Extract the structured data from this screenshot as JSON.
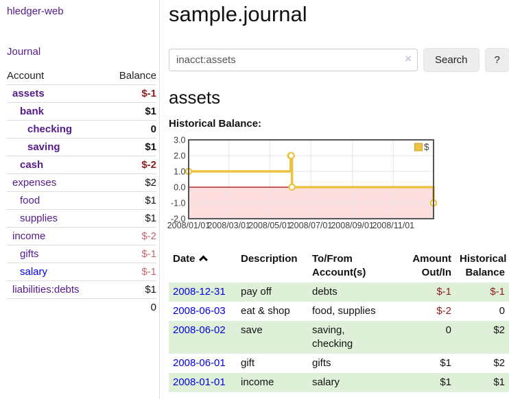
{
  "sidebar": {
    "brand": "hledger-web",
    "nav": [
      {
        "label": "Journal"
      }
    ],
    "accounts_table": {
      "headers": {
        "account": "Account",
        "balance": "Balance"
      },
      "rows": [
        {
          "account": "assets",
          "indent": 0,
          "bold": true,
          "balance": "$-1",
          "balance_style": "negative",
          "link_style": "purple"
        },
        {
          "account": "bank",
          "indent": 1,
          "bold": true,
          "balance": "$1",
          "balance_style": "normal",
          "link_style": "purple"
        },
        {
          "account": "checking",
          "indent": 2,
          "bold": true,
          "balance": "0",
          "balance_style": "normal",
          "link_style": "purple"
        },
        {
          "account": "saving",
          "indent": 2,
          "bold": true,
          "balance": "$1",
          "balance_style": "normal",
          "link_style": "purple"
        },
        {
          "account": "cash",
          "indent": 1,
          "bold": true,
          "balance": "$-2",
          "balance_style": "negative",
          "link_style": "purple"
        },
        {
          "account": "expenses",
          "indent": 0,
          "bold": false,
          "balance": "$2",
          "balance_style": "normal",
          "link_style": "purple"
        },
        {
          "account": "food",
          "indent": 1,
          "bold": false,
          "balance": "$1",
          "balance_style": "normal",
          "link_style": "purple"
        },
        {
          "account": "supplies",
          "indent": 1,
          "bold": false,
          "balance": "$1",
          "balance_style": "normal",
          "link_style": "purple"
        },
        {
          "account": "income",
          "indent": 0,
          "bold": false,
          "balance": "$-2",
          "balance_style": "negative-muted",
          "link_style": "purple"
        },
        {
          "account": "gifts",
          "indent": 1,
          "bold": false,
          "balance": "$-1",
          "balance_style": "negative-muted",
          "link_style": "purple"
        },
        {
          "account": "salary",
          "indent": 1,
          "bold": false,
          "balance": "$-1",
          "balance_style": "negative-muted",
          "link_style": "blue"
        },
        {
          "account": "liabilities:debts",
          "indent": 0,
          "bold": false,
          "balance": "$1",
          "balance_style": "normal",
          "link_style": "purple"
        }
      ],
      "total": "0"
    }
  },
  "header": {
    "title": "sample.journal"
  },
  "search": {
    "value": "inacct:assets",
    "clear_icon": "×",
    "search_label": "Search",
    "help_label": "?"
  },
  "account_page": {
    "title": "assets",
    "chart_label": "Historical Balance:"
  },
  "chart_data": {
    "type": "line",
    "step": true,
    "title": "Historical Balance:",
    "series": [
      {
        "name": "$",
        "color": "#edc240",
        "points": [
          [
            "2008-01-01",
            1
          ],
          [
            "2008-06-01",
            2
          ],
          [
            "2008-06-02",
            2
          ],
          [
            "2008-06-03",
            0
          ],
          [
            "2008-12-31",
            -1
          ]
        ]
      }
    ],
    "x_ticks": [
      "2008/01/01",
      "2008/03/01",
      "2008/05/01",
      "2008/07/01",
      "2008/09/01",
      "2008/11/01"
    ],
    "y_ticks": [
      3.0,
      2.0,
      1.0,
      0.0,
      -1.0,
      -2.0
    ],
    "xlim": [
      "2008-01-01",
      "2008-12-31"
    ],
    "ylim": [
      -2,
      3
    ],
    "grid": true,
    "legend_position": "top-right",
    "negative_region_color": "#fcdede",
    "zero_line_color": "#aa0000",
    "axis_text_color": "#3a3a3a",
    "border_color": "#545454",
    "grid_color": "#e5e5e5"
  },
  "register_table": {
    "headers": {
      "date": "Date",
      "description": "Description",
      "tofrom": "To/From\nAccount(s)",
      "amount": "Amount\nOut/In",
      "historical": "Historical\nBalance"
    },
    "rows": [
      {
        "date": "2008-12-31",
        "description": "pay off",
        "tofrom": "debts",
        "amount": "$-1",
        "amount_style": "negative",
        "historical": "$-1",
        "historical_style": "negative",
        "highlight": true
      },
      {
        "date": "2008-06-03",
        "description": "eat & shop",
        "tofrom": "food, supplies",
        "amount": "$-2",
        "amount_style": "negative",
        "historical": "0",
        "historical_style": "normal",
        "highlight": false
      },
      {
        "date": "2008-06-02",
        "description": "save",
        "tofrom": "saving,\nchecking",
        "amount": "0",
        "amount_style": "normal",
        "historical": "$2",
        "historical_style": "normal",
        "highlight": true
      },
      {
        "date": "2008-06-01",
        "description": "gift",
        "tofrom": "gifts",
        "amount": "$1",
        "amount_style": "normal",
        "historical": "$2",
        "historical_style": "normal",
        "highlight": false
      },
      {
        "date": "2008-01-01",
        "description": "income",
        "tofrom": "salary",
        "amount": "$1",
        "amount_style": "normal",
        "historical": "$1",
        "historical_style": "normal",
        "highlight": true
      }
    ]
  }
}
